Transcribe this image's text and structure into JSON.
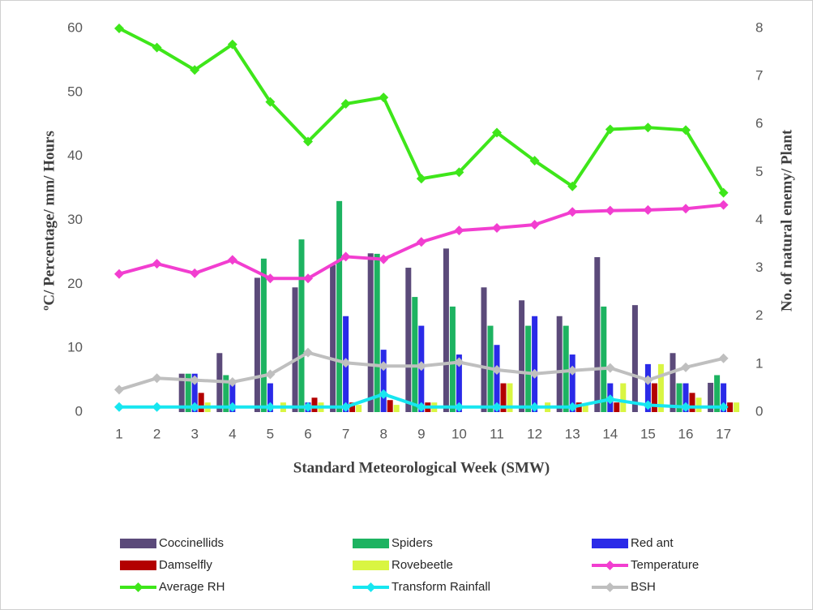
{
  "chart_data": {
    "type": "bar",
    "x_label": "Standard Meteorological Week (SMW)",
    "y_label": "ºC/ Percentage/ mm/ Hours",
    "y2_label": "No. of natural enemy/ Plant",
    "categories": [
      "1",
      "2",
      "3",
      "4",
      "5",
      "6",
      "7",
      "8",
      "9",
      "10",
      "11",
      "12",
      "13",
      "14",
      "15",
      "16",
      "17"
    ],
    "ylim": [
      0,
      60
    ],
    "yticks": [
      0,
      10,
      20,
      30,
      40,
      50,
      60
    ],
    "y2lim": [
      0,
      8
    ],
    "y2ticks": [
      0,
      1,
      2,
      3,
      4,
      5,
      6,
      7,
      8
    ],
    "grid": false,
    "series": [
      {
        "name": "Coccinellids",
        "type": "bar",
        "axis": "y2",
        "color": "#5b4a7a",
        "values": [
          0,
          0,
          0.8,
          1.23,
          2.8,
          2.6,
          3.07,
          3.31,
          3.01,
          3.41,
          2.6,
          2.33,
          2.0,
          3.23,
          2.23,
          1.23,
          0.61
        ]
      },
      {
        "name": "Spiders",
        "type": "bar",
        "axis": "y2",
        "color": "#1db361",
        "values": [
          0,
          0,
          0.8,
          0.77,
          3.2,
          3.6,
          4.4,
          3.3,
          2.4,
          2.2,
          1.8,
          1.8,
          1.8,
          2.2,
          0,
          0.6,
          0.77
        ]
      },
      {
        "name": "Red ant",
        "type": "bar",
        "axis": "y2",
        "color": "#2a2ae8",
        "values": [
          0,
          0,
          0.8,
          0.6,
          0.6,
          0.2,
          2.0,
          1.3,
          1.8,
          1.2,
          1.4,
          2.0,
          1.2,
          0.6,
          1.0,
          0.6,
          0.6
        ]
      },
      {
        "name": "Damselfly",
        "type": "bar",
        "axis": "y2",
        "color": "#b30000",
        "values": [
          0,
          0,
          0.4,
          0,
          0,
          0.3,
          0.2,
          0.25,
          0.2,
          0,
          0.6,
          0,
          0.2,
          0.2,
          0.6,
          0.4,
          0.2
        ]
      },
      {
        "name": "Rovebeetle",
        "type": "bar",
        "axis": "y2",
        "color": "#d9f542",
        "values": [
          0,
          0,
          0.2,
          0,
          0.2,
          0.2,
          0.15,
          0.15,
          0.2,
          0,
          0.6,
          0.2,
          0.15,
          0.6,
          1.0,
          0.3,
          0.2
        ]
      },
      {
        "name": "Temperature",
        "type": "line",
        "color": "#f23ed0",
        "values": [
          21.6,
          23.2,
          21.7,
          23.8,
          20.9,
          20.9,
          24.3,
          23.9,
          26.6,
          28.4,
          28.8,
          29.3,
          31.3,
          31.5,
          31.6,
          31.8,
          32.4
        ]
      },
      {
        "name": "Average RH",
        "type": "line",
        "color": "#3ee61a",
        "values": [
          60,
          57,
          53.5,
          57.5,
          48.5,
          42.3,
          48.2,
          49.2,
          36.5,
          37.5,
          43.7,
          39.3,
          35.3,
          44.2,
          44.5,
          44.1,
          34.3
        ]
      },
      {
        "name": "Transform Rainfall",
        "type": "line",
        "color": "#17e6f0",
        "values": [
          0.8,
          0.8,
          0.8,
          0.8,
          0.8,
          0.8,
          0.8,
          2.8,
          0.8,
          0.8,
          0.8,
          0.8,
          0.8,
          2.0,
          1.1,
          0.8,
          0.8
        ]
      },
      {
        "name": "BSH",
        "type": "line",
        "color": "#bfbfbf",
        "values": [
          3.5,
          5.3,
          5,
          4.7,
          5.9,
          9.3,
          7.7,
          7.2,
          7.2,
          7.8,
          6.6,
          6,
          6.5,
          6.9,
          5,
          7,
          8.4
        ]
      }
    ]
  }
}
